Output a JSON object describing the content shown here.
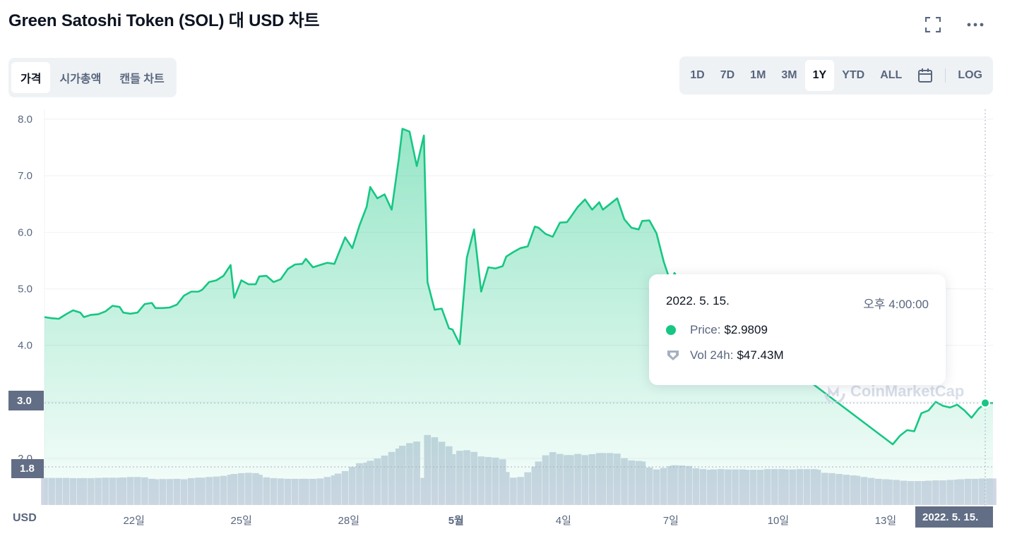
{
  "title": "Green Satoshi Token (SOL) 대 USD 차트",
  "icons": {
    "fullscreen": "fullscreen-icon",
    "more": "more-icon",
    "calendar": "calendar-icon"
  },
  "tabs_left": [
    {
      "label": "가격",
      "active": true
    },
    {
      "label": "시가총액",
      "active": false
    },
    {
      "label": "캔들 차트",
      "active": false
    }
  ],
  "ranges": [
    {
      "label": "1D",
      "active": false
    },
    {
      "label": "7D",
      "active": false
    },
    {
      "label": "1M",
      "active": false
    },
    {
      "label": "3M",
      "active": false
    },
    {
      "label": "1Y",
      "active": true
    },
    {
      "label": "YTD",
      "active": false
    },
    {
      "label": "ALL",
      "active": false
    }
  ],
  "log_label": "LOG",
  "tooltip": {
    "date": "2022. 5. 15.",
    "time": "오후 4:00:00",
    "price_key": "Price:",
    "price_value": "$2.9809",
    "vol_key": "Vol 24h:",
    "vol_value": "$47.43M"
  },
  "current_price_box": "3.0",
  "volume_box": "1.8",
  "x_cursor_label": "2022. 5. 15.",
  "currency_label": "USD",
  "watermark": "CoinMarketCap",
  "colors": {
    "line": "#16c784",
    "volume": "#cfd6e4",
    "axis_box": "#616e85"
  },
  "chart_data": {
    "type": "area",
    "ylabel": "USD",
    "ylim": [
      1.8,
      8.2
    ],
    "yticks": [
      "8.0",
      "7.0",
      "6.0",
      "5.0",
      "4.0",
      "3.0",
      "2.0"
    ],
    "yticks_values": [
      8,
      7,
      6,
      5,
      4,
      3,
      2
    ],
    "xtick_labels": [
      "22일",
      "25일",
      "28일",
      "5월",
      "4일",
      "7일",
      "10일",
      "13일"
    ],
    "xtick_positions": [
      22,
      25,
      28,
      31,
      34,
      37,
      40,
      43
    ],
    "x_range": [
      19.5,
      46
    ],
    "series": [
      {
        "values": [
          [
            19.5,
            4.5
          ],
          [
            19.7,
            4.48
          ],
          [
            19.9,
            4.47
          ],
          [
            20.1,
            4.55
          ],
          [
            20.3,
            4.62
          ],
          [
            20.5,
            4.58
          ],
          [
            20.6,
            4.5
          ],
          [
            20.8,
            4.54
          ],
          [
            21.0,
            4.55
          ],
          [
            21.2,
            4.6
          ],
          [
            21.4,
            4.7
          ],
          [
            21.6,
            4.68
          ],
          [
            21.7,
            4.58
          ],
          [
            21.9,
            4.56
          ],
          [
            22.1,
            4.58
          ],
          [
            22.3,
            4.73
          ],
          [
            22.5,
            4.75
          ],
          [
            22.6,
            4.66
          ],
          [
            22.8,
            4.66
          ],
          [
            23.0,
            4.67
          ],
          [
            23.2,
            4.72
          ],
          [
            23.4,
            4.88
          ],
          [
            23.6,
            4.95
          ],
          [
            23.8,
            4.95
          ],
          [
            23.9,
            4.98
          ],
          [
            24.1,
            5.12
          ],
          [
            24.3,
            5.15
          ],
          [
            24.5,
            5.23
          ],
          [
            24.7,
            5.42
          ],
          [
            24.8,
            4.84
          ],
          [
            25.0,
            5.15
          ],
          [
            25.2,
            5.08
          ],
          [
            25.4,
            5.08
          ],
          [
            25.5,
            5.22
          ],
          [
            25.7,
            5.23
          ],
          [
            25.9,
            5.12
          ],
          [
            26.1,
            5.17
          ],
          [
            26.3,
            5.35
          ],
          [
            26.5,
            5.43
          ],
          [
            26.7,
            5.44
          ],
          [
            26.8,
            5.53
          ],
          [
            27.0,
            5.38
          ],
          [
            27.2,
            5.42
          ],
          [
            27.4,
            5.46
          ],
          [
            27.6,
            5.44
          ],
          [
            27.7,
            5.6
          ],
          [
            27.9,
            5.91
          ],
          [
            28.1,
            5.72
          ],
          [
            28.3,
            6.12
          ],
          [
            28.5,
            6.45
          ],
          [
            28.6,
            6.8
          ],
          [
            28.8,
            6.6
          ],
          [
            29.0,
            6.67
          ],
          [
            29.2,
            6.4
          ],
          [
            29.4,
            7.3
          ],
          [
            29.5,
            7.83
          ],
          [
            29.7,
            7.78
          ],
          [
            29.9,
            7.17
          ],
          [
            30.1,
            7.71
          ],
          [
            30.2,
            5.12
          ],
          [
            30.4,
            4.63
          ],
          [
            30.6,
            4.65
          ],
          [
            30.8,
            4.3
          ],
          [
            30.9,
            4.28
          ],
          [
            31.1,
            4.02
          ],
          [
            31.3,
            5.55
          ],
          [
            31.5,
            6.05
          ],
          [
            31.7,
            4.95
          ],
          [
            31.9,
            5.38
          ],
          [
            32.1,
            5.36
          ],
          [
            32.3,
            5.4
          ],
          [
            32.4,
            5.57
          ],
          [
            32.6,
            5.65
          ],
          [
            32.8,
            5.72
          ],
          [
            33.0,
            5.75
          ],
          [
            33.2,
            6.1
          ],
          [
            33.3,
            6.08
          ],
          [
            33.5,
            5.97
          ],
          [
            33.7,
            5.92
          ],
          [
            33.9,
            6.17
          ],
          [
            34.1,
            6.18
          ],
          [
            34.2,
            6.27
          ],
          [
            34.4,
            6.45
          ],
          [
            34.6,
            6.58
          ],
          [
            34.8,
            6.4
          ],
          [
            35.0,
            6.53
          ],
          [
            35.1,
            6.4
          ],
          [
            35.3,
            6.5
          ],
          [
            35.5,
            6.6
          ],
          [
            35.7,
            6.23
          ],
          [
            35.9,
            6.08
          ],
          [
            36.1,
            6.05
          ],
          [
            36.2,
            6.2
          ],
          [
            36.4,
            6.21
          ],
          [
            36.6,
            5.98
          ],
          [
            36.8,
            5.48
          ],
          [
            37.0,
            5.1
          ],
          [
            37.1,
            5.28
          ],
          [
            37.3,
            5.07
          ],
          [
            43.2,
            2.25
          ],
          [
            43.4,
            2.4
          ],
          [
            43.6,
            2.5
          ],
          [
            43.8,
            2.48
          ],
          [
            44.0,
            2.8
          ],
          [
            44.2,
            2.85
          ],
          [
            44.4,
            3.0
          ],
          [
            44.6,
            2.93
          ],
          [
            44.8,
            2.9
          ],
          [
            45.0,
            2.95
          ],
          [
            45.2,
            2.85
          ],
          [
            45.4,
            2.72
          ],
          [
            45.6,
            2.88
          ],
          [
            45.8,
            2.98
          ],
          [
            46.0,
            2.98
          ]
        ]
      }
    ],
    "volume": {
      "range": [
        0,
        600
      ],
      "values": [
        [
          19.5,
          240
        ],
        [
          19.7,
          240
        ],
        [
          19.9,
          240
        ],
        [
          20.1,
          240
        ],
        [
          20.3,
          238
        ],
        [
          20.5,
          238
        ],
        [
          20.6,
          238
        ],
        [
          20.8,
          238
        ],
        [
          21.0,
          240
        ],
        [
          21.2,
          242
        ],
        [
          21.4,
          242
        ],
        [
          21.6,
          242
        ],
        [
          21.7,
          244
        ],
        [
          21.9,
          248
        ],
        [
          22.1,
          248
        ],
        [
          22.3,
          245
        ],
        [
          22.5,
          232
        ],
        [
          22.6,
          228
        ],
        [
          22.8,
          230
        ],
        [
          23.0,
          230
        ],
        [
          23.2,
          232
        ],
        [
          23.4,
          228
        ],
        [
          23.6,
          238
        ],
        [
          23.8,
          242
        ],
        [
          23.9,
          242
        ],
        [
          24.1,
          248
        ],
        [
          24.3,
          252
        ],
        [
          24.5,
          258
        ],
        [
          24.7,
          268
        ],
        [
          24.8,
          275
        ],
        [
          25.0,
          282
        ],
        [
          25.2,
          285
        ],
        [
          25.4,
          282
        ],
        [
          25.5,
          268
        ],
        [
          25.7,
          245
        ],
        [
          25.9,
          238
        ],
        [
          26.1,
          235
        ],
        [
          26.3,
          232
        ],
        [
          26.5,
          232
        ],
        [
          26.7,
          232
        ],
        [
          26.8,
          232
        ],
        [
          27.0,
          232
        ],
        [
          27.2,
          235
        ],
        [
          27.4,
          248
        ],
        [
          27.6,
          262
        ],
        [
          27.7,
          278
        ],
        [
          27.9,
          300
        ],
        [
          28.1,
          338
        ],
        [
          28.3,
          370
        ],
        [
          28.5,
          375
        ],
        [
          28.6,
          392
        ],
        [
          28.8,
          412
        ],
        [
          29.0,
          438
        ],
        [
          29.2,
          470
        ],
        [
          29.4,
          500
        ],
        [
          29.5,
          525
        ],
        [
          29.7,
          548
        ],
        [
          29.9,
          562
        ],
        [
          30.1,
          240
        ],
        [
          30.2,
          620
        ],
        [
          30.4,
          600
        ],
        [
          30.6,
          560
        ],
        [
          30.8,
          520
        ],
        [
          30.9,
          450
        ],
        [
          31.1,
          480
        ],
        [
          31.3,
          485
        ],
        [
          31.5,
          470
        ],
        [
          31.7,
          430
        ],
        [
          31.9,
          425
        ],
        [
          32.1,
          420
        ],
        [
          32.3,
          405
        ],
        [
          32.4,
          292
        ],
        [
          32.6,
          242
        ],
        [
          32.8,
          248
        ],
        [
          33.0,
          290
        ],
        [
          33.2,
          340
        ],
        [
          33.3,
          385
        ],
        [
          33.5,
          440
        ],
        [
          33.7,
          468
        ],
        [
          33.9,
          452
        ],
        [
          34.1,
          442
        ],
        [
          34.2,
          442
        ],
        [
          34.4,
          452
        ],
        [
          34.6,
          442
        ],
        [
          34.8,
          450
        ],
        [
          35.0,
          460
        ],
        [
          35.1,
          460
        ],
        [
          35.3,
          460
        ],
        [
          35.5,
          455
        ],
        [
          35.7,
          415
        ],
        [
          35.9,
          395
        ],
        [
          36.1,
          390
        ],
        [
          36.2,
          385
        ],
        [
          36.4,
          332
        ],
        [
          36.6,
          315
        ],
        [
          36.8,
          328
        ],
        [
          37.0,
          345
        ],
        [
          37.1,
          352
        ],
        [
          37.3,
          350
        ],
        [
          37.5,
          345
        ],
        [
          37.7,
          325
        ],
        [
          37.9,
          318
        ],
        [
          38.1,
          312
        ],
        [
          38.2,
          315
        ],
        [
          38.4,
          318
        ],
        [
          38.6,
          315
        ],
        [
          38.8,
          315
        ],
        [
          39.0,
          315
        ],
        [
          39.1,
          312
        ],
        [
          39.3,
          312
        ],
        [
          39.5,
          312
        ],
        [
          39.7,
          318
        ],
        [
          39.9,
          318
        ],
        [
          40.1,
          318
        ],
        [
          40.2,
          315
        ],
        [
          40.4,
          315
        ],
        [
          40.6,
          318
        ],
        [
          40.8,
          318
        ],
        [
          41.0,
          318
        ],
        [
          41.1,
          312
        ],
        [
          41.3,
          285
        ],
        [
          41.5,
          282
        ],
        [
          41.7,
          275
        ],
        [
          41.9,
          268
        ],
        [
          42.1,
          262
        ],
        [
          42.2,
          258
        ],
        [
          42.4,
          248
        ],
        [
          42.6,
          240
        ],
        [
          42.8,
          232
        ],
        [
          43.0,
          228
        ],
        [
          43.1,
          225
        ],
        [
          43.3,
          222
        ],
        [
          43.5,
          215
        ],
        [
          43.7,
          212
        ],
        [
          43.9,
          212
        ],
        [
          44.1,
          212
        ],
        [
          44.2,
          215
        ],
        [
          44.4,
          218
        ],
        [
          44.6,
          218
        ],
        [
          44.8,
          222
        ],
        [
          45.0,
          225
        ],
        [
          45.1,
          228
        ],
        [
          45.3,
          232
        ],
        [
          45.5,
          232
        ],
        [
          45.7,
          235
        ],
        [
          45.9,
          235
        ],
        [
          46.0,
          235
        ]
      ]
    }
  }
}
